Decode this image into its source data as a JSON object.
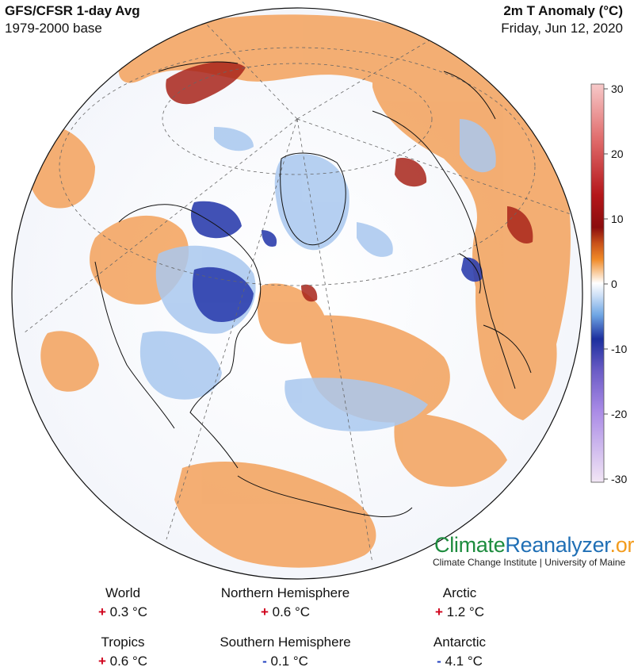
{
  "header": {
    "product": "GFS/CFSR 1-day Avg",
    "baseline": "1979-2000 base",
    "variable": "2m T Anomaly (°C)",
    "date": "Friday, Jun 12, 2020"
  },
  "colorbar": {
    "ticks": [
      "30",
      "20",
      "10",
      "0",
      "-10",
      "-20",
      "-30"
    ],
    "colors": {
      "warm_max": "#f7c9c9",
      "warm_strong": "#8b0d0d",
      "warm": "#e87b1c",
      "neutral": "#ffffff",
      "cool": "#6fa6e4",
      "cool_strong": "#1c2f9e",
      "cold": "#a98ae6",
      "cold_min": "#f2e6f5"
    }
  },
  "brand": {
    "part1": "Climate",
    "part2": "Reanalyzer",
    "part3": ".org",
    "subtitle": "Climate Change Institute | University of Maine"
  },
  "stats": {
    "world": {
      "label": "World",
      "sign": "+",
      "value": "0.3 °C"
    },
    "nh": {
      "label": "Northern Hemisphere",
      "sign": "+",
      "value": "0.6 °C"
    },
    "arctic": {
      "label": "Arctic",
      "sign": "+",
      "value": "1.2 °C"
    },
    "tropics": {
      "label": "Tropics",
      "sign": "+",
      "value": "0.6 °C"
    },
    "sh": {
      "label": "Southern Hemisphere",
      "sign": "-",
      "value": "0.1 °C"
    },
    "antarctic": {
      "label": "Antarctic",
      "sign": "-",
      "value": "4.1 °C"
    }
  }
}
